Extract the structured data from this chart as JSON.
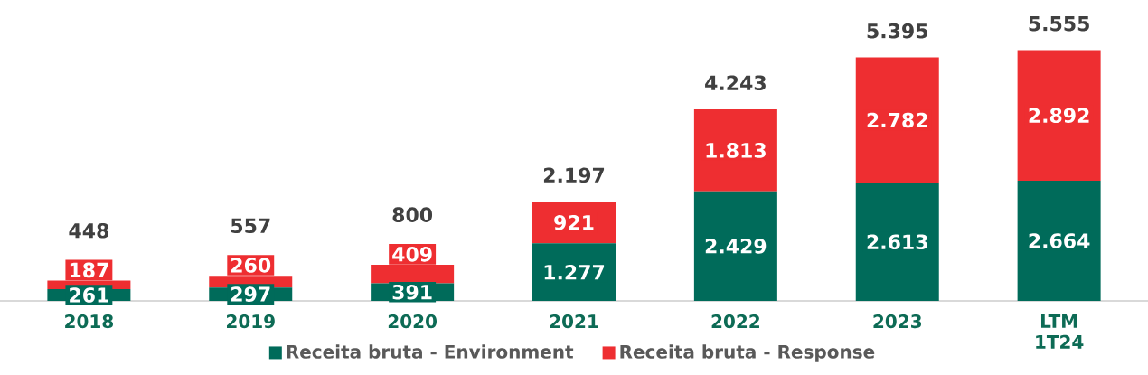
{
  "chart_data": {
    "type": "bar",
    "stacked": true,
    "legend": "bottom",
    "categories": [
      "2018",
      "2019",
      "2020",
      "2021",
      "2022",
      "2023",
      "LTM 1T24"
    ],
    "series": [
      {
        "name": "Receita bruta - Environment",
        "color": "#006b5a",
        "values": [
          261,
          297,
          391,
          1277,
          2429,
          2613,
          2664
        ],
        "value_labels": [
          "261",
          "297",
          "391",
          "1.277",
          "2.429",
          "2.613",
          "2.664"
        ]
      },
      {
        "name": "Receita bruta - Response",
        "color": "#ee2e31",
        "values": [
          187,
          260,
          409,
          921,
          1813,
          2782,
          2892
        ],
        "value_labels": [
          "187",
          "260",
          "409",
          "921",
          "1.813",
          "2.782",
          "2.892"
        ]
      }
    ],
    "totals": [
      "448",
      "557",
      "800",
      "2.197",
      "4.243",
      "5.395",
      "5.555"
    ]
  }
}
